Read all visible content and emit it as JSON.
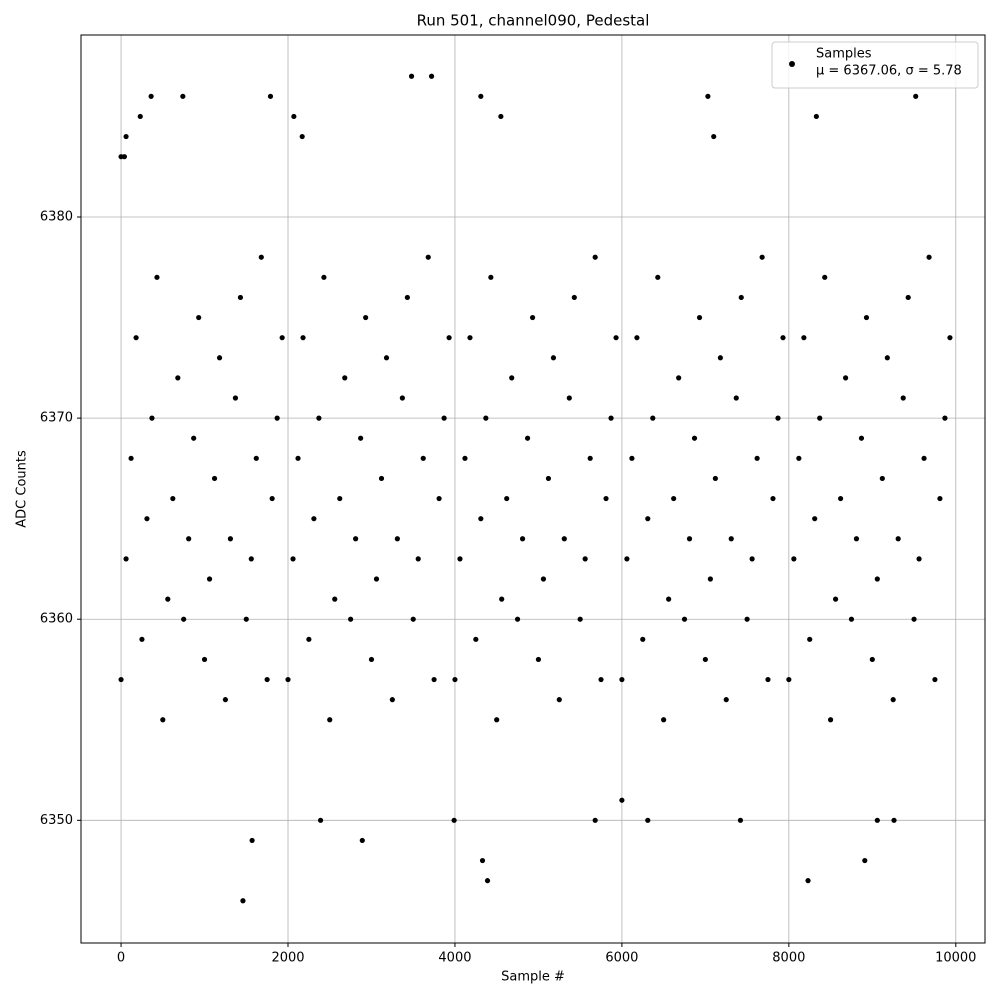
{
  "chart_data": {
    "type": "scatter",
    "title": "Run 501, channel090, Pedestal",
    "x_label": "Sample #",
    "y_label": "ADC Counts",
    "xlim": [
      -480,
      10350
    ],
    "ylim": [
      6343.9,
      6389.05
    ],
    "xticks": [
      0,
      2000,
      4000,
      6000,
      8000,
      10000
    ],
    "yticks": [
      6350,
      6360,
      6370,
      6380
    ],
    "grid": true,
    "legend_position": "upper right",
    "legend_note": "μ = 6367.06, σ = 5.78",
    "series": [
      {
        "name": "Samples",
        "color": "#000000",
        "x": [
          0,
          60,
          120,
          180,
          250,
          310,
          370,
          430,
          500,
          560,
          620,
          680,
          750,
          810,
          870,
          930,
          1000,
          1060,
          1120,
          1180,
          1250,
          1310,
          1370,
          1430,
          1500,
          1560,
          1620,
          1680,
          1750,
          1810,
          1870,
          1930,
          2000,
          2060,
          2120,
          2180,
          2250,
          2310,
          2370,
          2430,
          2500,
          2560,
          2620,
          2680,
          2750,
          2810,
          2870,
          2930,
          3000,
          3060,
          3120,
          3180,
          3250,
          3310,
          3370,
          3430,
          3500,
          3560,
          3620,
          3680,
          3750,
          3810,
          3870,
          3930,
          4000,
          4060,
          4120,
          4180,
          4250,
          4310,
          4370,
          4430,
          4500,
          4560,
          4620,
          4680,
          4750,
          4810,
          4870,
          4930,
          5000,
          5060,
          5120,
          5180,
          5250,
          5310,
          5370,
          5430,
          5500,
          5560,
          5620,
          5680,
          5750,
          5810,
          5870,
          5930,
          6000,
          6060,
          6120,
          6180,
          6250,
          6310,
          6370,
          6430,
          6500,
          6560,
          6620,
          6680,
          6750,
          6810,
          6870,
          6930,
          7000,
          7060,
          7120,
          7180,
          7250,
          7310,
          7370,
          7430,
          7500,
          7560,
          7620,
          7680,
          7750,
          7810,
          7870,
          7930,
          8000,
          8060,
          8120,
          8180,
          8250,
          8310,
          8370,
          8430,
          8500,
          8560,
          8620,
          8680,
          8750,
          8810,
          8870,
          8930,
          9000,
          9060,
          9120,
          9180,
          9250,
          9310,
          9370,
          9430,
          9500,
          9560,
          9620,
          9680,
          9750,
          9810,
          9870,
          9930,
          0,
          40,
          60,
          230,
          360,
          740,
          1460,
          1570,
          1790,
          2070,
          2170,
          2390,
          2890,
          3480,
          3720,
          3990,
          4310,
          4330,
          4390,
          4550,
          5680,
          6000,
          6310,
          7030,
          7100,
          7420,
          8230,
          8330,
          8910,
          9060,
          9260,
          9520
        ],
        "y": [
          6357,
          6363,
          6368,
          6374,
          6359,
          6365,
          6370,
          6377,
          6355,
          6361,
          6366,
          6372,
          6360,
          6364,
          6369,
          6375,
          6358,
          6362,
          6367,
          6373,
          6356,
          6364,
          6371,
          6376,
          6360,
          6363,
          6368,
          6378,
          6357,
          6366,
          6370,
          6374,
          6357,
          6363,
          6368,
          6374,
          6359,
          6365,
          6370,
          6377,
          6355,
          6361,
          6366,
          6372,
          6360,
          6364,
          6369,
          6375,
          6358,
          6362,
          6367,
          6373,
          6356,
          6364,
          6371,
          6376,
          6360,
          6363,
          6368,
          6378,
          6357,
          6366,
          6370,
          6374,
          6357,
          6363,
          6368,
          6374,
          6359,
          6365,
          6370,
          6377,
          6355,
          6361,
          6366,
          6372,
          6360,
          6364,
          6369,
          6375,
          6358,
          6362,
          6367,
          6373,
          6356,
          6364,
          6371,
          6376,
          6360,
          6363,
          6368,
          6378,
          6357,
          6366,
          6370,
          6374,
          6357,
          6363,
          6368,
          6374,
          6359,
          6365,
          6370,
          6377,
          6355,
          6361,
          6366,
          6372,
          6360,
          6364,
          6369,
          6375,
          6358,
          6362,
          6367,
          6373,
          6356,
          6364,
          6371,
          6376,
          6360,
          6363,
          6368,
          6378,
          6357,
          6366,
          6370,
          6374,
          6357,
          6363,
          6368,
          6374,
          6359,
          6365,
          6370,
          6377,
          6355,
          6361,
          6366,
          6372,
          6360,
          6364,
          6369,
          6375,
          6358,
          6362,
          6367,
          6373,
          6356,
          6364,
          6371,
          6376,
          6360,
          6363,
          6368,
          6378,
          6357,
          6366,
          6370,
          6374,
          6383,
          6383,
          6384,
          6385,
          6386,
          6386,
          6346,
          6349,
          6386,
          6385,
          6384,
          6350,
          6349,
          6387,
          6387,
          6350,
          6386,
          6348,
          6347,
          6385,
          6350,
          6351,
          6350,
          6386,
          6384,
          6350,
          6347,
          6385,
          6348,
          6350,
          6350,
          6386
        ]
      }
    ]
  }
}
